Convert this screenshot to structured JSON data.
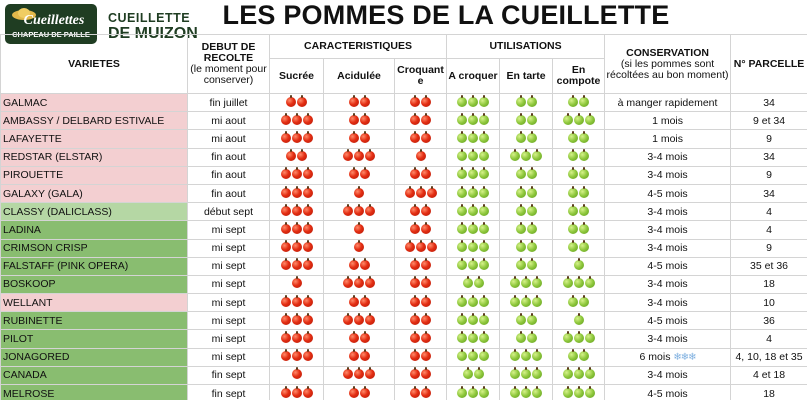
{
  "brand": {
    "logo_line1": "Cueillettes",
    "logo_line2": "CHAPEAU DE PAILLE",
    "name_line1": "CUEILLETTE",
    "name_line2": "DE MUIZON"
  },
  "title": "LES POMMES DE LA CUEILLETTE",
  "headers": {
    "varieties": "VARIETES",
    "harvest": "DEBUT DE RECOLTE",
    "harvest_note": "(le moment pour conserver)",
    "characteristics": "CARACTERISTIQUES",
    "sweet": "Sucrée",
    "acidic": "Acidulée",
    "crunchy": "Croquante",
    "uses": "UTILISATIONS",
    "eat": "A croquer",
    "tart": "En tarte",
    "compote": "En compote",
    "conservation": "CONSERVATION",
    "conservation_note": "(si les pommes sont récoltées au bon moment)",
    "plot": "N° PARCELLE"
  },
  "icon_colors": {
    "red": "#e32d12",
    "green": "#8cc63a"
  },
  "rows": [
    {
      "name": "GALMAC",
      "bg": "pink",
      "harvest": "fin juillet",
      "sweet": 2,
      "acidic": 2,
      "crunchy": 2,
      "eat": 3,
      "tart": 2,
      "compote": 2,
      "conservation": "à manger rapidement",
      "plot": "34"
    },
    {
      "name": "AMBASSY / DELBARD ESTIVALE",
      "bg": "pink",
      "harvest": "mi aout",
      "sweet": 3,
      "acidic": 2,
      "crunchy": 2,
      "eat": 3,
      "tart": 2,
      "compote": 3,
      "conservation": "1 mois",
      "plot": "9 et 34"
    },
    {
      "name": "LAFAYETTE",
      "bg": "pink",
      "harvest": "mi aout",
      "sweet": 3,
      "acidic": 2,
      "crunchy": 2,
      "eat": 3,
      "tart": 2,
      "compote": 2,
      "conservation": "1 mois",
      "plot": "9"
    },
    {
      "name": "REDSTAR (ELSTAR)",
      "bg": "pink",
      "harvest": "fin aout",
      "sweet": 2,
      "acidic": 3,
      "crunchy": 1,
      "eat": 3,
      "tart": 3,
      "compote": 2,
      "conservation": "3-4 mois",
      "plot": "34"
    },
    {
      "name": "PIROUETTE",
      "bg": "pink",
      "harvest": "fin aout",
      "sweet": 3,
      "acidic": 2,
      "crunchy": 2,
      "eat": 3,
      "tart": 2,
      "compote": 2,
      "conservation": "3-4 mois",
      "plot": "9"
    },
    {
      "name": "GALAXY (GALA)",
      "bg": "pink",
      "harvest": "fin aout",
      "sweet": 3,
      "acidic": 1,
      "crunchy": 3,
      "eat": 3,
      "tart": 2,
      "compote": 2,
      "conservation": "4-5 mois",
      "plot": "34"
    },
    {
      "name": "CLASSY (DALICLASS)",
      "bg": "lgreen",
      "harvest": "début sept",
      "sweet": 3,
      "acidic": 3,
      "crunchy": 2,
      "eat": 3,
      "tart": 2,
      "compote": 2,
      "conservation": "3-4 mois",
      "plot": "4"
    },
    {
      "name": "LADINA",
      "bg": "dgreen",
      "harvest": "mi sept",
      "sweet": 3,
      "acidic": 1,
      "crunchy": 2,
      "eat": 3,
      "tart": 2,
      "compote": 2,
      "conservation": "3-4 mois",
      "plot": "4"
    },
    {
      "name": "CRIMSON CRISP",
      "bg": "dgreen",
      "harvest": "mi sept",
      "sweet": 3,
      "acidic": 1,
      "crunchy": 3,
      "eat": 3,
      "tart": 2,
      "compote": 2,
      "conservation": "3-4 mois",
      "plot": "9"
    },
    {
      "name": "FALSTAFF (PINK OPERA)",
      "bg": "dgreen",
      "harvest": "mi sept",
      "sweet": 3,
      "acidic": 2,
      "crunchy": 2,
      "eat": 3,
      "tart": 2,
      "compote": 1,
      "conservation": "4-5 mois",
      "plot": "35 et 36"
    },
    {
      "name": "BOSKOOP",
      "bg": "dgreen",
      "harvest": "mi sept",
      "sweet": 1,
      "acidic": 3,
      "crunchy": 2,
      "eat": 2,
      "tart": 3,
      "compote": 3,
      "conservation": "3-4 mois",
      "plot": "18"
    },
    {
      "name": "WELLANT",
      "bg": "pink",
      "harvest": "mi sept",
      "sweet": 3,
      "acidic": 2,
      "crunchy": 2,
      "eat": 3,
      "tart": 3,
      "compote": 2,
      "conservation": "3-4 mois",
      "plot": "10"
    },
    {
      "name": "RUBINETTE",
      "bg": "dgreen",
      "harvest": "mi sept",
      "sweet": 3,
      "acidic": 3,
      "crunchy": 2,
      "eat": 3,
      "tart": 2,
      "compote": 1,
      "conservation": "4-5 mois",
      "plot": "36"
    },
    {
      "name": "PILOT",
      "bg": "dgreen",
      "harvest": "mi sept",
      "sweet": 3,
      "acidic": 2,
      "crunchy": 2,
      "eat": 3,
      "tart": 2,
      "compote": 3,
      "conservation": "3-4 mois",
      "plot": "4"
    },
    {
      "name": "JONAGORED",
      "bg": "dgreen",
      "harvest": "mi sept",
      "sweet": 3,
      "acidic": 2,
      "crunchy": 2,
      "eat": 3,
      "tart": 3,
      "compote": 2,
      "conservation": "6 mois",
      "snowflakes": "❄❄❄",
      "plot": "4, 10, 18 et 35"
    },
    {
      "name": "CANADA",
      "bg": "dgreen",
      "harvest": "fin sept",
      "sweet": 1,
      "acidic": 3,
      "crunchy": 2,
      "eat": 2,
      "tart": 3,
      "compote": 3,
      "conservation": "3-4 mois",
      "plot": "4 et 18"
    },
    {
      "name": "MELROSE",
      "bg": "dgreen",
      "harvest": "fin sept",
      "sweet": 3,
      "acidic": 2,
      "crunchy": 2,
      "eat": 3,
      "tart": 3,
      "compote": 3,
      "conservation": "4-5 mois",
      "plot": "18"
    }
  ]
}
